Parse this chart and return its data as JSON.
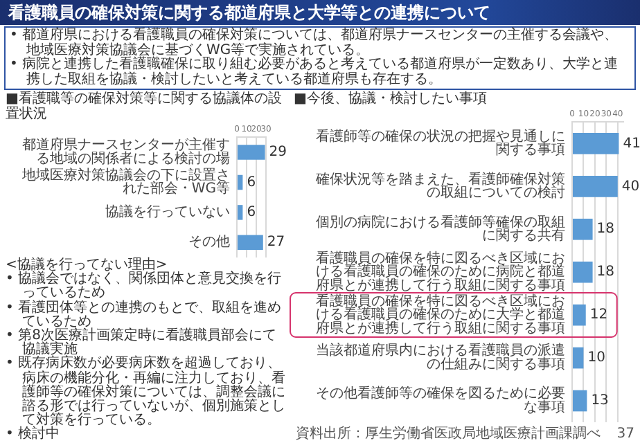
{
  "chart_data": [
    {
      "type": "other",
      "title": "看護職員の確保対策に関する都道府県と大学等との連携について",
      "annotations": [
        "• 都道府県における看護職員の確保対策については、都道府県ナースセンターの主催する会議や、地域医療対策協議会に基づくWG等で実施されている。",
        "• 病院と連携した看護職確保に取り組む必要があると考えている都道府県が一定数あり、大学と連携した取組を協議・検討したいと考えている都道府県も存在する。"
      ]
    },
    {
      "type": "bar",
      "orientation": "horizontal",
      "title": "■看護職等の確保対策等に関する協議体の設置状況",
      "categories": [
        "都道府県ナースセンターが主催する地域の関係者による検討の場",
        "地域医療対策協議会の下に設置された部会・WG等",
        "協議を行っていない",
        "その他"
      ],
      "values": [
        29,
        6,
        6,
        27
      ],
      "color": "#5b9bd5",
      "xlim": [
        0,
        30
      ],
      "xticks": [
        0,
        10,
        20,
        30
      ],
      "grid": "x",
      "data_labels": true,
      "annotations": [
        "<協議を行ってない理由>",
        "• 協議会ではなく、関係団体と意見交換を行っているため",
        "• 看護団体等との連携のもとで、取組を進めているため",
        "• 第8次医療計画策定時に看護職員部会にて協議実施",
        "• 既存病床数が必要病床数を超過しており、病床の機能分化・再編に注力しており、看護師等の確保対策については、調整会議に諮る形では行っていないが、個別施策として対策を行っている。",
        "• 検討中"
      ]
    },
    {
      "type": "bar",
      "orientation": "horizontal",
      "title": "■今後、協議・検討したい事項",
      "categories": [
        "看護師等の確保の状況の把握や見通しに関する事項",
        "確保状況等を踏まえた、看護師確保対策の取組についての検討",
        "個別の病院における看護師等確保の取組に関する共有",
        "看護職員の確保を特に図るべき区域における看護職員の確保のために病院と都道府県とが連携して行う取組に関する事項",
        "看護職員の確保を特に図るべき区域における看護職員の確保のために大学と都道府県とが連携して行う取組に関する事項",
        "当該都道府県内における看護職員の派遣の仕組みに関する事項",
        "その他看護師等の確保を図るために必要な事項"
      ],
      "values": [
        41,
        40,
        18,
        18,
        12,
        10,
        13
      ],
      "color": "#5b9bd5",
      "xlim": [
        0,
        45
      ],
      "xticks": [
        0,
        10,
        20,
        30,
        40
      ],
      "grid": "x",
      "data_labels": true,
      "annotations": [
        "資料出所：厚生労働省医政局地域医療計画課調べ",
        "37"
      ]
    }
  ]
}
